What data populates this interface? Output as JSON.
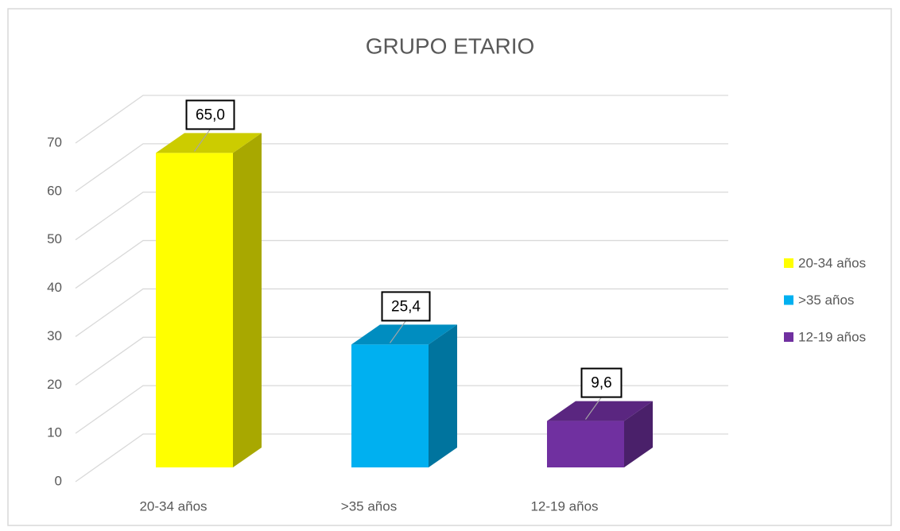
{
  "chart_data": {
    "type": "bar3d",
    "title": "GRUPO ETARIO",
    "categories": [
      "20-34 años",
      ">35 años",
      "12-19 años"
    ],
    "values": [
      65.0,
      25.4,
      9.6
    ],
    "value_labels": [
      "65,0",
      "25,4",
      "9,6"
    ],
    "colors": [
      "#ffff00",
      "#00b0f0",
      "#7030a0"
    ],
    "ylim": [
      0,
      70
    ],
    "yticks": [
      0,
      10,
      20,
      30,
      40,
      50,
      60,
      70
    ],
    "grid": true,
    "legend": "right"
  }
}
